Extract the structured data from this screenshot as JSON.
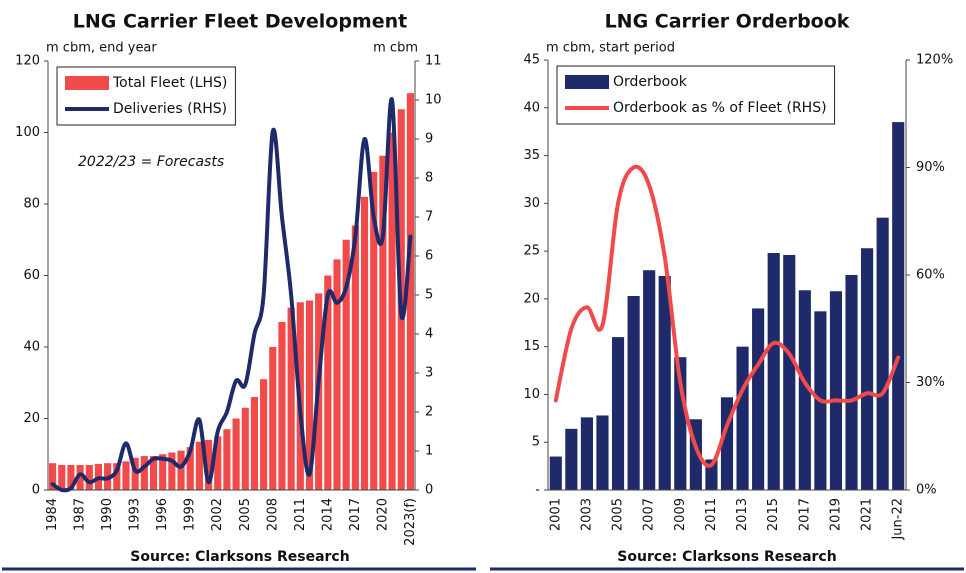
{
  "chart_data": [
    {
      "type": "bar",
      "title": "LNG Carrier Fleet Development",
      "y_label": "m cbm, end year",
      "y2_label": "m cbm",
      "annotation": "2022/23 = Forecasts",
      "source": "Source: Clarksons Research",
      "legend": "top-left",
      "categories": [
        "1984",
        null,
        null,
        "1987",
        null,
        null,
        "1990",
        null,
        null,
        "1993",
        null,
        null,
        "1996",
        null,
        null,
        "1999",
        null,
        null,
        "2002",
        null,
        null,
        "2005",
        null,
        null,
        "2008",
        null,
        null,
        "2011",
        null,
        null,
        "2014",
        null,
        null,
        "2017",
        null,
        null,
        "2020",
        null,
        null,
        "2023(f)"
      ],
      "series": [
        {
          "name": "Total Fleet (LHS)",
          "type": "bar",
          "color": "#f04a4a",
          "values": [
            7.5,
            7,
            7,
            7,
            7,
            7.3,
            7.5,
            7.5,
            8,
            9,
            9.5,
            9.5,
            10,
            10.5,
            11,
            12,
            13.5,
            14,
            15,
            17,
            20,
            23,
            26,
            31,
            40,
            47,
            51,
            52.5,
            53,
            55,
            60,
            64.5,
            70,
            74,
            82,
            89,
            93.5,
            100,
            106.5,
            111
          ]
        },
        {
          "name": "Deliveries (RHS)",
          "type": "line",
          "axis": "y2",
          "color": "#1f2a6b",
          "values": [
            0.15,
            0,
            0.05,
            0.4,
            0.2,
            0.3,
            0.3,
            0.5,
            1.2,
            0.5,
            0.6,
            0.8,
            0.8,
            0.75,
            0.6,
            1.0,
            1.8,
            0.2,
            1.5,
            2.0,
            2.8,
            2.7,
            4.0,
            5.0,
            9.2,
            7.0,
            5.0,
            2.0,
            0.4,
            2.8,
            5.0,
            4.8,
            5.2,
            6.5,
            9.0,
            7.0,
            6.5,
            10.0,
            4.5,
            6.5
          ]
        }
      ],
      "ylim": [
        0,
        120
      ],
      "yticks": [
        0,
        20,
        40,
        60,
        80,
        100,
        120
      ],
      "y2lim": [
        0,
        11
      ],
      "y2ticks": [
        0,
        1,
        2,
        3,
        4,
        5,
        6,
        7,
        8,
        9,
        10,
        11
      ]
    },
    {
      "type": "bar",
      "title": "LNG Carrier Orderbook",
      "y_label": "m cbm, start period",
      "source": "Source: Clarksons Research",
      "legend": "top-left",
      "categories": [
        "2001",
        null,
        "2003",
        null,
        "2005",
        null,
        "2007",
        null,
        "2009",
        null,
        "2011",
        null,
        "2013",
        null,
        "2015",
        null,
        "2017",
        null,
        "2019",
        null,
        "2021",
        null,
        "Jun-22"
      ],
      "series": [
        {
          "name": "Orderbook",
          "type": "bar",
          "color": "#1f2a6b",
          "values": [
            3.5,
            6.4,
            7.6,
            7.8,
            16,
            20.3,
            23,
            22.4,
            13.9,
            7.4,
            3.2,
            9.7,
            15,
            19,
            24.8,
            24.6,
            20.9,
            18.7,
            20.8,
            22.5,
            25.3,
            28.5,
            38.5
          ]
        },
        {
          "name": "Orderbook as % of Fleet (RHS)",
          "type": "line",
          "axis": "y2",
          "color": "#f04a4a",
          "values": [
            25,
            45,
            51,
            46,
            80,
            90,
            85,
            65,
            30,
            12,
            7,
            18,
            28,
            35,
            41,
            38,
            30,
            25,
            25,
            25,
            27,
            27,
            37
          ]
        }
      ],
      "ylim": [
        0,
        45
      ],
      "yticks": [
        {
          "value": 0,
          "label": "-"
        },
        5,
        10,
        15,
        20,
        25,
        30,
        35,
        40,
        45
      ],
      "y2lim": [
        0,
        120
      ],
      "y2ticks": [
        {
          "value": 0,
          "label": "0%"
        },
        {
          "value": 30,
          "label": "30%"
        },
        {
          "value": 60,
          "label": "60%"
        },
        {
          "value": 90,
          "label": "90%"
        },
        {
          "value": 120,
          "label": "120%"
        }
      ]
    }
  ]
}
